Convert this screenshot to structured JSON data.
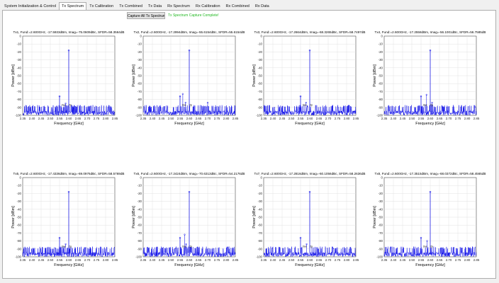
{
  "tabs": [
    {
      "label": "System Initialization & Control",
      "active": false
    },
    {
      "label": "Tx Spectrum",
      "active": true
    },
    {
      "label": "Tx Calibration",
      "active": false
    },
    {
      "label": "Tx Combined",
      "active": false
    },
    {
      "label": "Tx Data",
      "active": false
    },
    {
      "label": "Rx Spectrum",
      "active": false
    },
    {
      "label": "Rx Calibration",
      "active": false
    },
    {
      "label": "Rx Combined",
      "active": false
    },
    {
      "label": "Rx Data",
      "active": false
    }
  ],
  "toolbar": {
    "capture_label": "Capture All Tx Spectrums",
    "status_text": "Tx Spectrum Capture Complete!",
    "status_color": "#22b822"
  },
  "colors": {
    "trace": "#0000e6",
    "marker": "#0000e6"
  },
  "chart_data": [
    {
      "type": "line",
      "title": "Tx1, Fund:=2.600GHz, -17.5933dBm, Imag=-75.0609dBc, SFDR=58.3564dB",
      "xlabel": "Frequency [GHz]",
      "ylabel": "Power [dBm]",
      "xlim": [
        2.35,
        2.85
      ],
      "ylim": [
        -100,
        0
      ],
      "noise_floor": -90,
      "peaks": [
        {
          "x": 2.6,
          "y": -18
        },
        {
          "x": 2.55,
          "y": -76
        }
      ],
      "spurs": [
        {
          "x": 2.583,
          "y": -85
        }
      ],
      "marker_labels": [
        {
          "x": 2.56,
          "y": -88,
          "text": "2ee"
        },
        {
          "x": 2.6,
          "y": -88,
          "text": "2p"
        }
      ]
    },
    {
      "type": "line",
      "title": "Tx2, Fund:=2.600GHz, -17.2994dBm, Imag=-55.6154dBc, SFDR=55.6154dB",
      "xlabel": "Frequency [GHz]",
      "ylabel": "Power [dBm]",
      "xlim": [
        2.35,
        2.85
      ],
      "ylim": [
        -100,
        0
      ],
      "noise_floor": -90,
      "peaks": [
        {
          "x": 2.6,
          "y": -18
        },
        {
          "x": 2.55,
          "y": -76
        }
      ],
      "spurs": [
        {
          "x": 2.565,
          "y": -73
        },
        {
          "x": 2.58,
          "y": -84
        },
        {
          "x": 2.7,
          "y": -84
        }
      ],
      "marker_labels": [
        {
          "x": 2.56,
          "y": -88,
          "text": "2ee"
        },
        {
          "x": 2.6,
          "y": -88,
          "text": "2p"
        }
      ]
    },
    {
      "type": "line",
      "title": "Tx3, Fund:=2.600GHz, -17.2664dBm, Imag=-68.3265dBc, SFDR=58.7497dB",
      "xlabel": "Frequency [GHz]",
      "ylabel": "Power [dBm]",
      "xlim": [
        2.35,
        2.85
      ],
      "ylim": [
        -100,
        0
      ],
      "noise_floor": -90,
      "peaks": [
        {
          "x": 2.6,
          "y": -18
        },
        {
          "x": 2.55,
          "y": -76
        }
      ],
      "spurs": [
        {
          "x": 2.58,
          "y": -84
        }
      ],
      "marker_labels": [
        {
          "x": 2.56,
          "y": -88,
          "text": "2ee"
        },
        {
          "x": 2.6,
          "y": -88,
          "text": "2p"
        }
      ]
    },
    {
      "type": "line",
      "title": "Tx4, Fund:=2.600GHz, -17.2558dBm, Imag=-56.1001dBc, SFDR=56.7585dB",
      "xlabel": "Frequency [GHz]",
      "ylabel": "Power [dBm]",
      "xlim": [
        2.35,
        2.85
      ],
      "ylim": [
        -100,
        0
      ],
      "noise_floor": -90,
      "peaks": [
        {
          "x": 2.6,
          "y": -18
        },
        {
          "x": 2.55,
          "y": -76
        }
      ],
      "spurs": [
        {
          "x": 2.58,
          "y": -74
        },
        {
          "x": 2.61,
          "y": -84
        }
      ],
      "marker_labels": [
        {
          "x": 2.56,
          "y": -88,
          "text": "2ee"
        },
        {
          "x": 2.6,
          "y": -88,
          "text": "2p"
        }
      ]
    },
    {
      "type": "line",
      "title": "Tx5, Fund:=2.600GHz, -17.4336dBm, Imag=-69.0976dBc, SFDR=58.5769dB",
      "xlabel": "Frequency [GHz]",
      "ylabel": "Power [dBm]",
      "xlim": [
        2.35,
        2.85
      ],
      "ylim": [
        -100,
        0
      ],
      "noise_floor": -90,
      "peaks": [
        {
          "x": 2.6,
          "y": -18
        },
        {
          "x": 2.55,
          "y": -76
        }
      ],
      "spurs": [
        {
          "x": 2.583,
          "y": -84
        }
      ],
      "marker_labels": [
        {
          "x": 2.56,
          "y": -88,
          "text": "2ee"
        },
        {
          "x": 2.6,
          "y": -88,
          "text": "2p"
        }
      ]
    },
    {
      "type": "line",
      "title": "Tx6, Fund:=2.600GHz, -17.2424dBm, Imag=-70.6313dBc, SFDR=54.2176dB",
      "xlabel": "Frequency [GHz]",
      "ylabel": "Power [dBm]",
      "xlim": [
        2.35,
        2.85
      ],
      "ylim": [
        -100,
        0
      ],
      "noise_floor": -90,
      "peaks": [
        {
          "x": 2.6,
          "y": -18
        },
        {
          "x": 2.55,
          "y": -76
        }
      ],
      "spurs": [
        {
          "x": 2.575,
          "y": -72
        },
        {
          "x": 2.583,
          "y": -84
        }
      ],
      "marker_labels": [
        {
          "x": 2.56,
          "y": -88,
          "text": "2ee"
        },
        {
          "x": 2.6,
          "y": -88,
          "text": "2p"
        }
      ]
    },
    {
      "type": "line",
      "title": "Tx7, Fund:=2.600GHz, -17.2816dBm, Imag=-60.1056dBc, SFDR=58.2636dB",
      "xlabel": "Frequency [GHz]",
      "ylabel": "Power [dBm]",
      "xlim": [
        2.35,
        2.85
      ],
      "ylim": [
        -100,
        0
      ],
      "noise_floor": -90,
      "peaks": [
        {
          "x": 2.6,
          "y": -18
        },
        {
          "x": 2.55,
          "y": -76
        }
      ],
      "spurs": [
        {
          "x": 2.583,
          "y": -84
        }
      ],
      "marker_labels": [
        {
          "x": 2.56,
          "y": -88,
          "text": "2ee"
        },
        {
          "x": 2.6,
          "y": -88,
          "text": "2p"
        }
      ]
    },
    {
      "type": "line",
      "title": "Tx8, Fund:=2.600GHz, -17.3515dBm, Imag=-68.0372dBc, SFDR=58.4565dB",
      "xlabel": "Frequency [GHz]",
      "ylabel": "Power [dBm]",
      "xlim": [
        2.35,
        2.85
      ],
      "ylim": [
        -100,
        0
      ],
      "noise_floor": -90,
      "peaks": [
        {
          "x": 2.6,
          "y": -18
        },
        {
          "x": 2.55,
          "y": -76
        }
      ],
      "spurs": [
        {
          "x": 2.583,
          "y": -80
        }
      ],
      "marker_labels": [
        {
          "x": 2.56,
          "y": -88,
          "text": "2ee"
        },
        {
          "x": 2.6,
          "y": -88,
          "text": "2p"
        }
      ]
    }
  ]
}
